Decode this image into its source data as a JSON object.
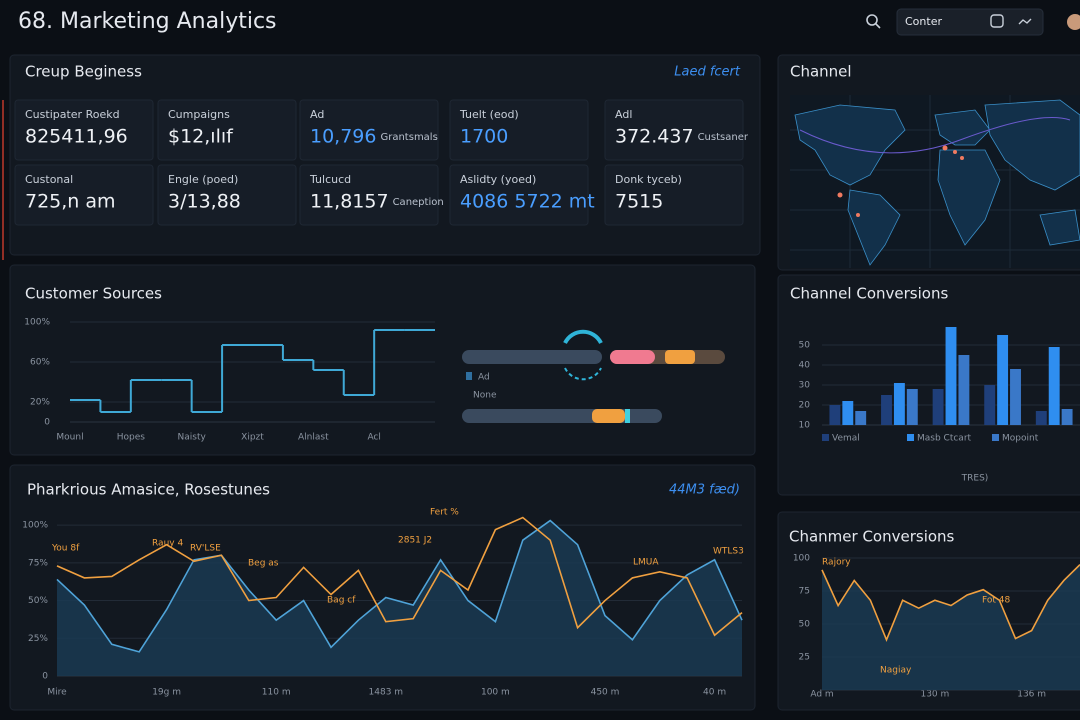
{
  "header": {
    "title": "68. Marketing Analytics",
    "search": "Conter"
  },
  "overview": {
    "title": "Creup Beginess",
    "link": "Laed fcert",
    "cards": [
      {
        "label": "Custipater Roekd",
        "value": "825411,96"
      },
      {
        "label": "Cumpaigns",
        "value": "$12,ılıf"
      },
      {
        "label": "Ad",
        "value": "10,796",
        "note": "Grantsmals",
        "color": "#4a9eff"
      },
      {
        "label": "Tuelt (eod)",
        "value": "1700",
        "color": "#4a9eff"
      },
      {
        "label": "Adl",
        "value": "372.437",
        "note": "Custsaner"
      },
      {
        "label": "Custonal",
        "value": "725,n am"
      },
      {
        "label": "Engle (poed)",
        "value": "3/13,88"
      },
      {
        "label": "Tulcucd",
        "value": "11,8157",
        "note": "Caneption"
      },
      {
        "label": "Aslidty (yoed)",
        "value": "4086 5722 mt",
        "color": "#4a9eff"
      },
      {
        "label": "Donk tyceb)",
        "value": "7515"
      }
    ]
  },
  "sources": {
    "labels": [
      "Ad",
      "None"
    ]
  },
  "channel": {
    "title": "Channel"
  },
  "chart_data": [
    {
      "type": "step",
      "title": "Customer Sources",
      "categories": [
        "Mounl",
        null,
        "Hopes",
        null,
        "Naisty",
        null,
        "Xipzt",
        null,
        "Alnlast",
        null,
        "Acl",
        null
      ],
      "values": [
        22,
        10,
        42,
        42,
        10,
        77,
        77,
        62,
        52,
        27,
        92,
        92
      ],
      "color": "#3fa9d6",
      "ylim": [
        0,
        100
      ],
      "yticks": [
        0,
        {
          "value": 20,
          "label": "20%"
        },
        {
          "value": 60,
          "label": "60%"
        },
        {
          "value": 100,
          "label": "100%"
        }
      ]
    },
    {
      "type": "bar",
      "title": "Channel Conversions",
      "categories": [
        null,
        null,
        null,
        null,
        null
      ],
      "series": [
        {
          "name": "Vemal",
          "color": "#1f3f7a",
          "values": [
            20,
            25,
            28,
            30,
            17
          ]
        },
        {
          "name": "Masb Ctcart",
          "color": "#2f8ef0",
          "values": [
            22,
            31,
            59,
            55,
            49
          ]
        },
        {
          "name": "Mopoint",
          "color": "#3a78c8",
          "values": [
            17,
            28,
            45,
            38,
            18
          ]
        }
      ],
      "ylim": [
        10,
        60
      ],
      "yticks": [
        10,
        20,
        30,
        40,
        50
      ],
      "legend": "bottom",
      "note": "TRES)"
    },
    {
      "type": "area",
      "title": "Pharkrious Amasice, Rosestunes",
      "link": "44M3 fæd)",
      "categories": [
        "Mire",
        null,
        null,
        null,
        "19g m",
        null,
        null,
        null,
        "110 m",
        null,
        null,
        null,
        "1483 m",
        null,
        null,
        null,
        "100 m",
        null,
        null,
        null,
        "450 m",
        null,
        null,
        null,
        "40 m",
        null
      ],
      "series": [
        {
          "color": "#4fa3d8",
          "fill": "#1a3a52",
          "values": [
            64,
            47,
            21,
            16,
            44,
            77,
            80,
            57,
            37,
            50,
            19,
            37,
            52,
            47,
            77,
            50,
            36,
            90,
            103,
            87,
            40,
            24,
            50,
            67,
            77,
            37
          ]
        },
        {
          "color": "#f0a040",
          "values": [
            73,
            65,
            66,
            77,
            87,
            76,
            80,
            50,
            52,
            72,
            54,
            70,
            36,
            38,
            70,
            57,
            97,
            105,
            90,
            32,
            50,
            65,
            69,
            65,
            27,
            42
          ]
        }
      ],
      "ylim": [
        0,
        110
      ],
      "yticks": [
        0,
        {
          "value": 25,
          "label": "25%"
        },
        {
          "value": 50,
          "label": "50%"
        },
        {
          "value": 75,
          "label": "75%"
        },
        {
          "value": 100,
          "label": "100%"
        }
      ],
      "annotations": [
        "You 8f",
        "Rauy 4",
        "RV'LSE",
        "Beg as",
        "Bag cf",
        "Fert %",
        "2851 J2",
        "LMUA",
        "WTLS3"
      ]
    },
    {
      "type": "area",
      "title": "Chanmer Conversions",
      "categories": [
        "Ad m",
        null,
        null,
        null,
        null,
        null,
        null,
        "130 m",
        null,
        null,
        null,
        null,
        null,
        "136 m",
        null,
        null,
        null
      ],
      "series": [
        {
          "color": "#f0a040",
          "fill": "#1a3a52",
          "values": [
            91,
            64,
            83,
            68,
            38,
            68,
            62,
            68,
            64,
            72,
            76,
            68,
            39,
            45,
            68,
            83,
            95
          ]
        }
      ],
      "ylim": [
        0,
        100
      ],
      "yticks": [
        25,
        50,
        75,
        100
      ],
      "annotations": [
        "Rajory",
        "Fot 48",
        "Nagiay"
      ]
    }
  ]
}
